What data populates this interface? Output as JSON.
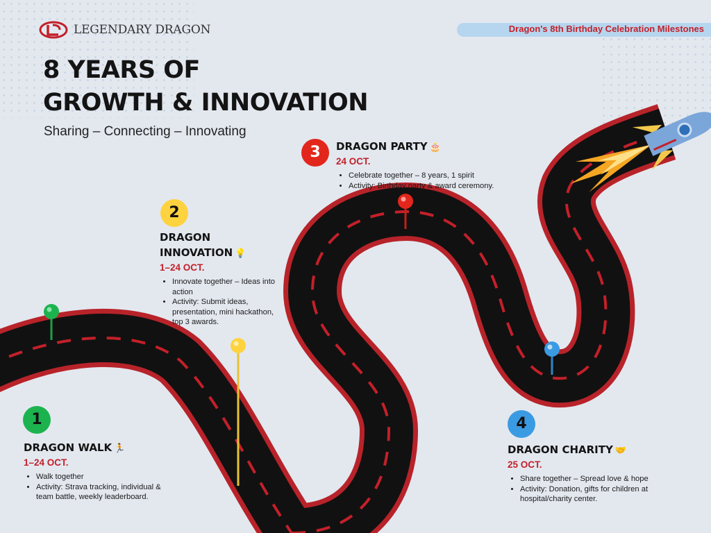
{
  "logo": {
    "text": "LEGENDARY DRAGON"
  },
  "banner": {
    "text": "Dragon's 8th Birthday Celebration Milestones"
  },
  "title": {
    "line1": "8 YEARS OF",
    "line2": "GROWTH & INNOVATION"
  },
  "subtitle": "Sharing – Connecting – Innovating",
  "colors": {
    "accent": "#c3202a",
    "road": "#111111",
    "road_edge": "#b8232a",
    "banner": "#b6d5ee"
  },
  "milestones": [
    {
      "number": "1",
      "title_lines": [
        "DRAGON WALK"
      ],
      "emoji": "🏃",
      "date": "1–24 OCT.",
      "bullets": [
        "Walk together",
        "Activity: Strava tracking, individual & team battle, weekly leaderboard."
      ],
      "color": "#1cb34f"
    },
    {
      "number": "2",
      "title_lines": [
        "DRAGON",
        "INNOVATION"
      ],
      "emoji": "💡",
      "date": "1–24 OCT.",
      "bullets": [
        "Innovate together – Ideas into action",
        "Activity: Submit ideas, presentation, mini hackathon, top 3 awards."
      ],
      "color": "#ffd23f"
    },
    {
      "number": "3",
      "title_lines": [
        "DRAGON PARTY"
      ],
      "emoji": "🎂",
      "date": "24 OCT.",
      "bullets": [
        "Celebrate together – 8 years, 1 spirit",
        "Activity: Birthday party & award ceremony."
      ],
      "color": "#e3261c"
    },
    {
      "number": "4",
      "title_lines": [
        "DRAGON CHARITY"
      ],
      "emoji": "🤝",
      "date": "25 OCT.",
      "bullets": [
        "Share together – Spread love & hope",
        "Activity: Donation, gifts for children at hospital/charity center."
      ],
      "color": "#3b9be2"
    }
  ]
}
